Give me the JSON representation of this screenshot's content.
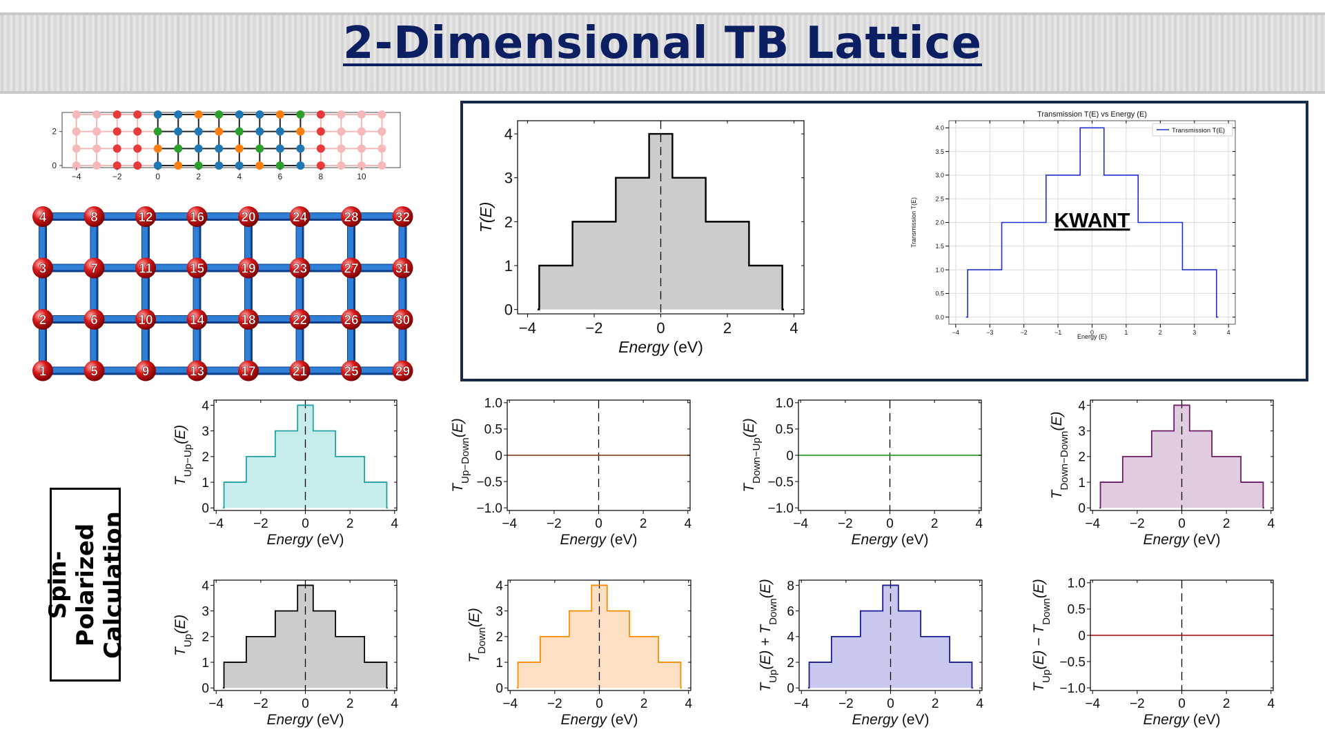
{
  "page": {
    "title": "2-Dimensional TB Lattice",
    "spin_label": "Spin-Polarized Calculation"
  },
  "lattice": {
    "strip_xticks": [
      "−4",
      "−2",
      "0",
      "2",
      "4",
      "6",
      "8",
      "10"
    ],
    "strip_yticks": [
      "0",
      "2"
    ],
    "node_columns": [
      [
        4,
        3,
        2,
        1
      ],
      [
        8,
        7,
        6,
        5
      ],
      [
        12,
        11,
        10,
        9
      ],
      [
        16,
        15,
        14,
        13
      ],
      [
        20,
        19,
        18,
        17
      ],
      [
        24,
        23,
        22,
        21
      ],
      [
        28,
        27,
        26,
        25
      ],
      [
        32,
        31,
        30,
        29
      ]
    ],
    "colors": {
      "bond": "#2f7fd6",
      "node": "#d81a1a"
    }
  },
  "chart_data": [
    {
      "id": "main",
      "type": "area",
      "xlabel": "Energy (eV)",
      "ylabel": "T(E)",
      "x": [
        -3.7,
        -3.65,
        -2.65,
        -1.35,
        -0.35,
        0.35,
        1.35,
        2.65,
        3.65,
        3.7
      ],
      "y": [
        0,
        1,
        2,
        3,
        4,
        3,
        2,
        1,
        0,
        0
      ],
      "xlim": [
        -4.3,
        4.3
      ],
      "ylim": [
        -0.1,
        4.3
      ],
      "xticks": [
        "−4",
        "−2",
        "0",
        "2",
        "4"
      ],
      "yticks": [
        "0",
        "1",
        "2",
        "3",
        "4"
      ],
      "color": "#000000",
      "fill": "#cccccc"
    },
    {
      "id": "kwant",
      "type": "line",
      "title": "Transmission T(E) vs Energy (E)",
      "xlabel": "Energy (E)",
      "ylabel": "Transmission T(E)",
      "legend": "Transmission T(E)",
      "legend_position": "top-right",
      "annotation": "KWANT",
      "x": [
        -3.7,
        -3.65,
        -2.65,
        -1.35,
        -0.35,
        0.35,
        1.35,
        2.65,
        3.65,
        3.7
      ],
      "y": [
        0,
        1,
        2,
        3,
        4,
        3,
        2,
        1,
        0,
        0
      ],
      "xlim": [
        -4.2,
        4.2
      ],
      "ylim": [
        -0.15,
        4.15
      ],
      "xticks": [
        "−4",
        "−3",
        "−2",
        "−1",
        "0",
        "1",
        "2",
        "3",
        "4"
      ],
      "yticks": [
        "0.0",
        "0.5",
        "1.0",
        "1.5",
        "2.0",
        "2.5",
        "3.0",
        "3.5",
        "4.0"
      ],
      "grid": true,
      "color": "#1f2fd0"
    },
    {
      "id": "up-up",
      "type": "area",
      "xlabel": "Energy (eV)",
      "ylabel": "T_{Up−Up}(E)",
      "x": [
        -3.7,
        -3.65,
        -2.65,
        -1.35,
        -0.35,
        0.35,
        1.35,
        2.65,
        3.65,
        3.7
      ],
      "y": [
        0,
        1,
        2,
        3,
        4,
        3,
        2,
        1,
        0,
        0
      ],
      "xlim": [
        -4.1,
        4.1
      ],
      "ylim": [
        -0.1,
        4.2
      ],
      "xticks": [
        "−4",
        "−2",
        "0",
        "2",
        "4"
      ],
      "yticks": [
        "0",
        "1",
        "2",
        "3",
        "4"
      ],
      "color": "#1fa3a3",
      "fill": "#c7ecec"
    },
    {
      "id": "up-down",
      "type": "line",
      "xlabel": "Energy (eV)",
      "ylabel": "T_{Up−Down}(E)",
      "x": [
        -4.1,
        4.1
      ],
      "y": [
        0,
        0
      ],
      "xlim": [
        -4.1,
        4.1
      ],
      "ylim": [
        -1.05,
        1.05
      ],
      "xticks": [
        "−4",
        "−2",
        "0",
        "2",
        "4"
      ],
      "yticks": [
        "−1.0",
        "−0.5",
        "0",
        "0.5",
        "1.0"
      ],
      "color": "#8b4a2b"
    },
    {
      "id": "down-up",
      "type": "line",
      "xlabel": "Energy (eV)",
      "ylabel": "T_{Down−Up}(E)",
      "x": [
        -4.1,
        4.1
      ],
      "y": [
        0,
        0
      ],
      "xlim": [
        -4.1,
        4.1
      ],
      "ylim": [
        -1.05,
        1.05
      ],
      "xticks": [
        "−4",
        "−2",
        "0",
        "2",
        "4"
      ],
      "yticks": [
        "−1.0",
        "−0.5",
        "0",
        "0.5",
        "1.0"
      ],
      "color": "#2ca02c"
    },
    {
      "id": "down-down",
      "type": "area",
      "xlabel": "Energy (eV)",
      "ylabel": "T_{Down−Down}(E)",
      "x": [
        -3.7,
        -3.65,
        -2.65,
        -1.35,
        -0.35,
        0.35,
        1.35,
        2.65,
        3.65,
        3.7
      ],
      "y": [
        0,
        1,
        2,
        3,
        4,
        3,
        2,
        1,
        0,
        0
      ],
      "xlim": [
        -4.1,
        4.1
      ],
      "ylim": [
        -0.1,
        4.2
      ],
      "xticks": [
        "−4",
        "−2",
        "0",
        "2",
        "4"
      ],
      "yticks": [
        "0",
        "1",
        "2",
        "3",
        "4"
      ],
      "color": "#6b1f66",
      "fill": "#e0cbe0"
    },
    {
      "id": "up",
      "type": "area",
      "xlabel": "Energy (eV)",
      "ylabel": "T_{Up}(E)",
      "x": [
        -3.7,
        -3.65,
        -2.65,
        -1.35,
        -0.35,
        0.35,
        1.35,
        2.65,
        3.65,
        3.7
      ],
      "y": [
        0,
        1,
        2,
        3,
        4,
        3,
        2,
        1,
        0,
        0
      ],
      "xlim": [
        -4.1,
        4.1
      ],
      "ylim": [
        -0.1,
        4.2
      ],
      "xticks": [
        "−4",
        "−2",
        "0",
        "2",
        "4"
      ],
      "yticks": [
        "0",
        "1",
        "2",
        "3",
        "4"
      ],
      "color": "#000000",
      "fill": "#cccccc"
    },
    {
      "id": "down",
      "type": "area",
      "xlabel": "Energy (eV)",
      "ylabel": "T_{Down}(E)",
      "x": [
        -3.7,
        -3.65,
        -2.65,
        -1.35,
        -0.35,
        0.35,
        1.35,
        2.65,
        3.65,
        3.7
      ],
      "y": [
        0,
        1,
        2,
        3,
        4,
        3,
        2,
        1,
        0,
        0
      ],
      "xlim": [
        -4.1,
        4.1
      ],
      "ylim": [
        -0.1,
        4.2
      ],
      "xticks": [
        "−4",
        "−2",
        "0",
        "2",
        "4"
      ],
      "yticks": [
        "0",
        "1",
        "2",
        "3",
        "4"
      ],
      "color": "#ff8c00",
      "fill": "#fde0c4"
    },
    {
      "id": "sum",
      "type": "area",
      "xlabel": "Energy (eV)",
      "ylabel": "T_{Up}(E) + T_{Down}(E)",
      "x": [
        -3.7,
        -3.65,
        -2.65,
        -1.35,
        -0.35,
        0.35,
        1.35,
        2.65,
        3.65,
        3.7
      ],
      "y": [
        0,
        2,
        4,
        6,
        8,
        6,
        4,
        2,
        0,
        0
      ],
      "xlim": [
        -4.1,
        4.1
      ],
      "ylim": [
        -0.2,
        8.4
      ],
      "xticks": [
        "−4",
        "−2",
        "0",
        "2",
        "4"
      ],
      "yticks": [
        "0",
        "2",
        "4",
        "6",
        "8"
      ],
      "color": "#1a1a9a",
      "fill": "#c8c8ee"
    },
    {
      "id": "diff",
      "type": "line",
      "xlabel": "Energy (eV)",
      "ylabel": "T_{Up}(E) − T_{Down}(E)",
      "x": [
        -4.1,
        4.1
      ],
      "y": [
        0,
        0
      ],
      "xlim": [
        -4.1,
        4.1
      ],
      "ylim": [
        -1.05,
        1.05
      ],
      "xticks": [
        "−4",
        "−2",
        "0",
        "2",
        "4"
      ],
      "yticks": [
        "−1.0",
        "−0.5",
        "0",
        "0.5",
        "1.0"
      ],
      "color": "#b22222"
    }
  ]
}
